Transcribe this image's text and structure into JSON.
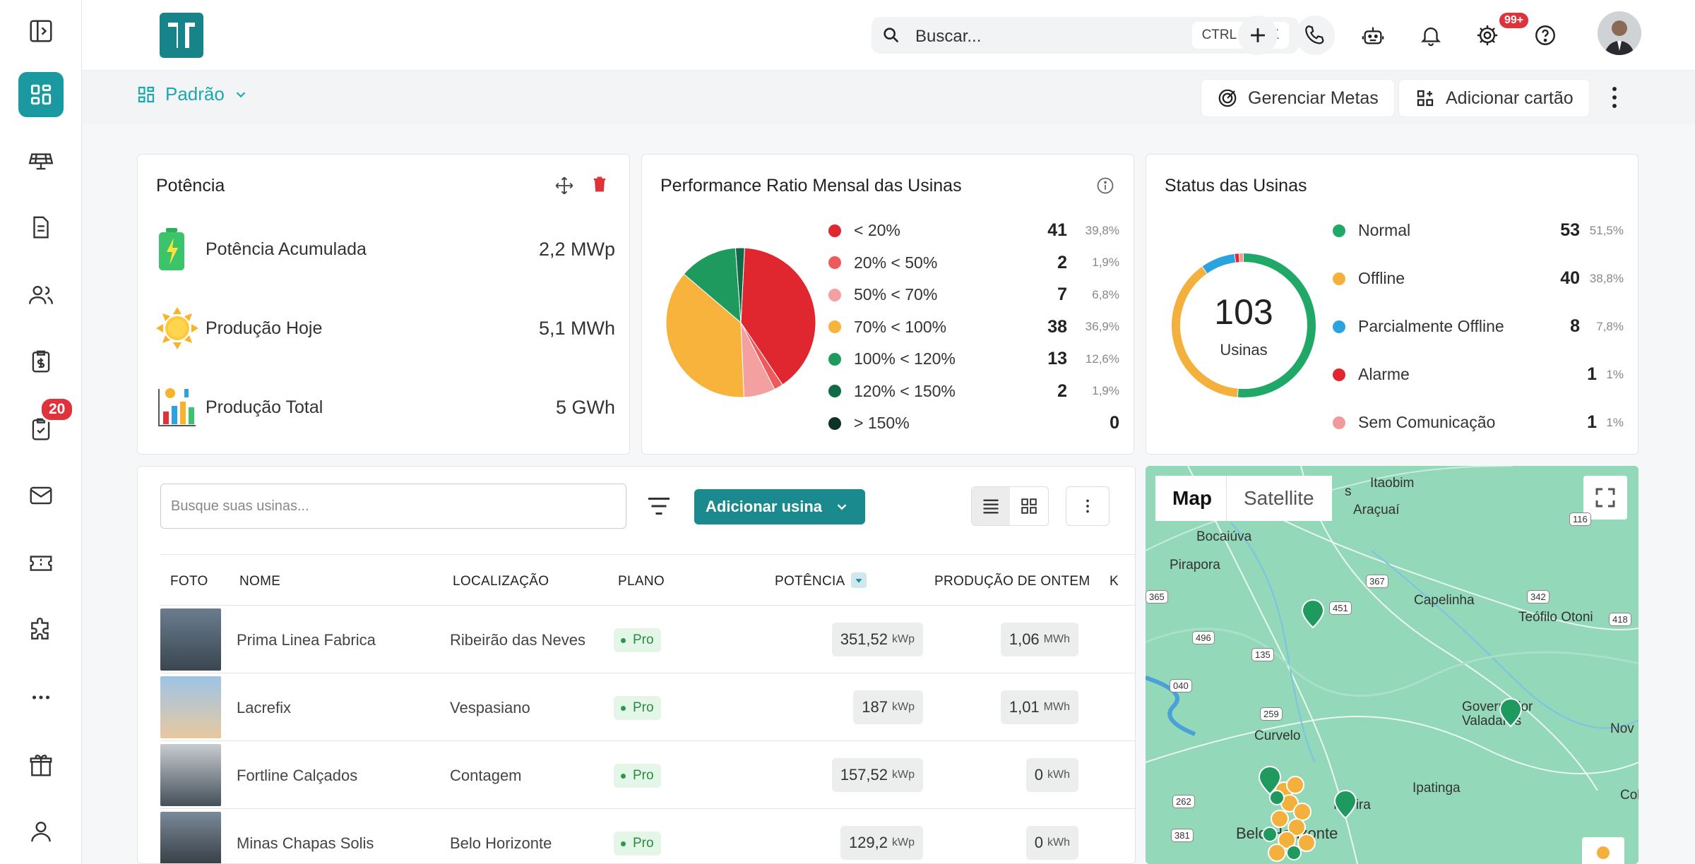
{
  "sidebar": {
    "badge": "20"
  },
  "topbar": {
    "search_placeholder": "Buscar...",
    "kbd": [
      "CTRL",
      "+",
      "K"
    ],
    "notification_count": "99+"
  },
  "subbar": {
    "dashboard_label": "Padrão",
    "manage_goals": "Gerenciar Metas",
    "add_card": "Adicionar cartão"
  },
  "potencia": {
    "title": "Potência",
    "rows": [
      {
        "label": "Potência Acumulada",
        "value": "2,2 MWp"
      },
      {
        "label": "Produção Hoje",
        "value": "5,1 MWh"
      },
      {
        "label": "Produção Total",
        "value": "5 GWh"
      }
    ]
  },
  "performance": {
    "title": "Performance Ratio Mensal das Usinas",
    "legend": [
      {
        "label": "< 20%",
        "count": "41",
        "pct": "39,8%",
        "color": "#e0262e"
      },
      {
        "label": "20% < 50%",
        "count": "2",
        "pct": "1,9%",
        "color": "#ee5a5a"
      },
      {
        "label": "50% < 70%",
        "count": "7",
        "pct": "6,8%",
        "color": "#f4a0a0"
      },
      {
        "label": "70% < 100%",
        "count": "38",
        "pct": "36,9%",
        "color": "#f7b33c"
      },
      {
        "label": "100% < 120%",
        "count": "13",
        "pct": "12,6%",
        "color": "#1e9a5e"
      },
      {
        "label": "120% < 150%",
        "count": "2",
        "pct": "1,9%",
        "color": "#0f6a45"
      },
      {
        "label": "> 150%",
        "count": "0",
        "pct": "",
        "color": "#0d3324"
      }
    ]
  },
  "chart_data": {
    "type": "pie",
    "categories": [
      "< 20%",
      "20% < 50%",
      "50% < 70%",
      "70% < 100%",
      "100% < 120%",
      "120% < 150%",
      "> 150%"
    ],
    "values": [
      41,
      2,
      7,
      38,
      13,
      2,
      0
    ],
    "colors": [
      "#e0262e",
      "#ee5a5a",
      "#f4a0a0",
      "#f7b33c",
      "#1e9a5e",
      "#0f6a45",
      "#0d3324"
    ],
    "title": "Performance Ratio Mensal das Usinas"
  },
  "status": {
    "title": "Status das Usinas",
    "total": "103",
    "total_label": "Usinas",
    "legend": [
      {
        "label": "Normal",
        "count": "53",
        "pct": "51,5%",
        "color": "#20a866"
      },
      {
        "label": "Offline",
        "count": "40",
        "pct": "38,8%",
        "color": "#f4b03c"
      },
      {
        "label": "Parcialmente Offline",
        "count": "8",
        "pct": "7,8%",
        "color": "#2aa3e0"
      },
      {
        "label": "Alarme",
        "count": "1",
        "pct": "1%",
        "color": "#e0262e"
      },
      {
        "label": "Sem Comunicação",
        "count": "1",
        "pct": "1%",
        "color": "#f29a9a"
      }
    ]
  },
  "table": {
    "search_placeholder": "Busque suas usinas...",
    "add_button": "Adicionar usina",
    "headers": [
      "FOTO",
      "NOME",
      "LOCALIZAÇÃO",
      "PLANO",
      "POTÊNCIA",
      "PRODUÇÃO DE ONTEM",
      "K"
    ],
    "rows": [
      {
        "name": "Prima Linea Fabrica",
        "location": "Ribeirão das Neves",
        "plan": "Pro",
        "power": "351,52",
        "power_unit": "kWp",
        "prod": "1,06",
        "prod_unit": "MWh"
      },
      {
        "name": "Lacrefix",
        "location": "Vespasiano",
        "plan": "Pro",
        "power": "187",
        "power_unit": "kWp",
        "prod": "1,01",
        "prod_unit": "MWh"
      },
      {
        "name": "Fortline Calçados",
        "location": "Contagem",
        "plan": "Pro",
        "power": "157,52",
        "power_unit": "kWp",
        "prod": "0",
        "prod_unit": "kWh"
      },
      {
        "name": "Minas Chapas Solis",
        "location": "Belo Horizonte",
        "plan": "Pro",
        "power": "129,2",
        "power_unit": "kWp",
        "prod": "0",
        "prod_unit": "kWh"
      }
    ]
  },
  "map": {
    "tabs": [
      "Map",
      "Satellite"
    ],
    "labels": [
      "Itaobim",
      "Araçuaí",
      "Bocaiúva",
      "Pirapora",
      "Capelinha",
      "Teófilo Otoni",
      "Governador Valadares",
      "Curvelo",
      "Ipatinga",
      "Itabira",
      "Belo Horizonte",
      "Nov",
      "Colat",
      "s"
    ],
    "shields": [
      "116",
      "367",
      "451",
      "342",
      "418",
      "135",
      "496",
      "040",
      "259",
      "365",
      "262",
      "381"
    ]
  }
}
